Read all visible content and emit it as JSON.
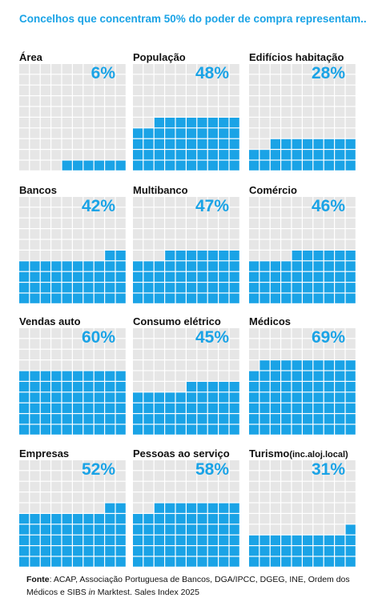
{
  "title": "Concelhos que concentram 50% do poder de compra representam...",
  "colors": {
    "filled": "#1aa3e6",
    "empty": "#e6e6e6",
    "accent": "#1aa3e6"
  },
  "chart_data": {
    "type": "waffle",
    "grid": {
      "cols": 10,
      "rows": 10
    },
    "panels": [
      {
        "label": "Área",
        "label_suffix": "",
        "value_label": "6%",
        "value": 6
      },
      {
        "label": "População",
        "label_suffix": "",
        "value_label": "48%",
        "value": 48
      },
      {
        "label": "Edifícios habitação",
        "label_suffix": "",
        "value_label": "28%",
        "value": 28
      },
      {
        "label": "Bancos",
        "label_suffix": "",
        "value_label": "42%",
        "value": 42
      },
      {
        "label": "Multibanco",
        "label_suffix": "",
        "value_label": "47%",
        "value": 47
      },
      {
        "label": "Comércio",
        "label_suffix": "",
        "value_label": "46%",
        "value": 46
      },
      {
        "label": "Vendas auto",
        "label_suffix": "",
        "value_label": "60%",
        "value": 60
      },
      {
        "label": "Consumo elétrico",
        "label_suffix": "",
        "value_label": "45%",
        "value": 45
      },
      {
        "label": "Médicos",
        "label_suffix": "",
        "value_label": "69%",
        "value": 69
      },
      {
        "label": "Empresas",
        "label_suffix": "",
        "value_label": "52%",
        "value": 52
      },
      {
        "label": "Pessoas ao serviço",
        "label_suffix": "",
        "value_label": "58%",
        "value": 58
      },
      {
        "label": "Turismo",
        "label_suffix": "(inc.aloj.local)",
        "value_label": "31%",
        "value": 31
      }
    ]
  },
  "source": {
    "prefix": "Fonte",
    "text1": ": ACAP, Associação Portuguesa de Bancos, DGA/IPCC,  DGEG, INE, Ordem dos Médicos e SIBS ",
    "italic": "in",
    "text2": " Marktest. Sales Index 2025"
  }
}
